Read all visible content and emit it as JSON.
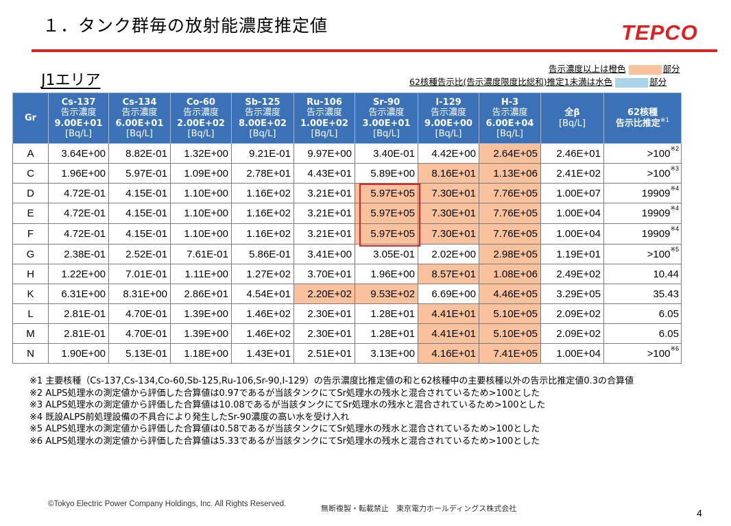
{
  "title": "１．タンク群毎の放射能濃度推定値",
  "logo": "TEPCO",
  "area_title": "J1エリア",
  "legend": {
    "line1_text": "告示濃度以上は橙色",
    "line1_suffix": "部分",
    "line2_text": "62核種告示比(告示濃度限度比総和)推定1未満は水色",
    "line2_suffix": "部分",
    "orange_color": "#f9c29c",
    "blue_color": "#a9d5e6"
  },
  "table": {
    "gr_header": "Gr",
    "columns": [
      {
        "name": "Cs-137",
        "sub": "告示濃度",
        "limit": "9.00E+01",
        "unit": "[Bq/L]"
      },
      {
        "name": "Cs-134",
        "sub": "告示濃度",
        "limit": "6.00E+01",
        "unit": "[Bq/L]"
      },
      {
        "name": "Co-60",
        "sub": "告示濃度",
        "limit": "2.00E+02",
        "unit": "[Bq/L]"
      },
      {
        "name": "Sb-125",
        "sub": "告示濃度",
        "limit": "8.00E+02",
        "unit": "[Bq/L]"
      },
      {
        "name": "Ru-106",
        "sub": "告示濃度",
        "limit": "1.00E+02",
        "unit": "[Bq/L]"
      },
      {
        "name": "Sr-90",
        "sub": "告示濃度",
        "limit": "3.00E+01",
        "unit": "[Bq/L]"
      },
      {
        "name": "I-129",
        "sub": "告示濃度",
        "limit": "9.00E+00",
        "unit": "[Bq/L]"
      },
      {
        "name": "H-3",
        "sub": "告示濃度",
        "limit": "6.00E+04",
        "unit": "[Bq/L]"
      }
    ],
    "beta_header": {
      "name": "全β",
      "unit": "[Bq/L]"
    },
    "ratio_header": {
      "name": "62核種",
      "sub": "告示比推定",
      "mark": "※1"
    },
    "rows": [
      {
        "gr": "A",
        "values": [
          "3.64E+00",
          "8.82E-01",
          "1.32E+00",
          "9.21E-01",
          "9.97E+00",
          "3.40E-01",
          "4.42E+00",
          "2.64E+05"
        ],
        "orange": [
          7
        ],
        "beta": "2.46E+01",
        "ratio": ">100",
        "note": "※2"
      },
      {
        "gr": "C",
        "values": [
          "1.96E+00",
          "5.97E-01",
          "1.09E+00",
          "2.78E+01",
          "4.43E+01",
          "5.89E+00",
          "8.16E+01",
          "1.13E+06"
        ],
        "orange": [
          6,
          7
        ],
        "beta": "2.41E+02",
        "ratio": ">100",
        "note": "※3"
      },
      {
        "gr": "D",
        "values": [
          "4.72E-01",
          "4.15E-01",
          "1.10E+00",
          "1.16E+02",
          "3.21E+01",
          "5.97E+05",
          "7.30E+01",
          "7.76E+05"
        ],
        "orange": [
          5,
          6,
          7
        ],
        "beta": "1.00E+07",
        "ratio": "19909",
        "note": "※4"
      },
      {
        "gr": "E",
        "values": [
          "4.72E-01",
          "4.15E-01",
          "1.10E+00",
          "1.16E+02",
          "3.21E+01",
          "5.97E+05",
          "7.30E+01",
          "7.76E+05"
        ],
        "orange": [
          5,
          6,
          7
        ],
        "beta": "1.00E+04",
        "ratio": "19909",
        "note": "※4"
      },
      {
        "gr": "F",
        "values": [
          "4.72E-01",
          "4.15E-01",
          "1.10E+00",
          "1.16E+02",
          "3.21E+01",
          "5.97E+05",
          "7.30E+01",
          "7.76E+05"
        ],
        "orange": [
          5,
          6,
          7
        ],
        "beta": "1.00E+04",
        "ratio": "19909",
        "note": "※4"
      },
      {
        "gr": "G",
        "values": [
          "2.38E-01",
          "2.52E-01",
          "7.61E-01",
          "5.86E-01",
          "3.41E+00",
          "3.05E-01",
          "2.02E+00",
          "2.98E+05"
        ],
        "orange": [
          7
        ],
        "beta": "1.19E+01",
        "ratio": ">100",
        "note": "※5"
      },
      {
        "gr": "H",
        "values": [
          "1.22E+00",
          "7.01E-01",
          "1.11E+00",
          "1.27E+02",
          "3.70E+01",
          "1.96E+00",
          "8.57E+01",
          "1.08E+06"
        ],
        "orange": [
          6,
          7
        ],
        "beta": "2.49E+02",
        "ratio": "10.44",
        "note": ""
      },
      {
        "gr": "K",
        "values": [
          "6.31E+00",
          "8.31E+00",
          "2.86E+01",
          "4.54E+01",
          "2.20E+02",
          "9.53E+02",
          "6.69E+00",
          "4.46E+05"
        ],
        "orange": [
          4,
          5,
          7
        ],
        "beta": "3.29E+05",
        "ratio": "35.43",
        "note": ""
      },
      {
        "gr": "L",
        "values": [
          "2.81E-01",
          "4.70E-01",
          "1.39E+00",
          "1.46E+02",
          "2.30E+01",
          "1.28E+01",
          "4.41E+01",
          "5.10E+05"
        ],
        "orange": [
          6,
          7
        ],
        "beta": "2.09E+02",
        "ratio": "6.05",
        "note": ""
      },
      {
        "gr": "M",
        "values": [
          "2.81E-01",
          "4.70E-01",
          "1.39E+00",
          "1.46E+02",
          "2.30E+01",
          "1.28E+01",
          "4.41E+01",
          "5.10E+05"
        ],
        "orange": [
          6,
          7
        ],
        "beta": "2.09E+02",
        "ratio": "6.05",
        "note": ""
      },
      {
        "gr": "N",
        "values": [
          "1.90E+00",
          "5.13E-01",
          "1.18E+00",
          "1.43E+01",
          "2.51E+01",
          "3.13E+00",
          "4.16E+01",
          "7.41E+05"
        ],
        "orange": [
          6,
          7
        ],
        "beta": "1.00E+04",
        "ratio": ">100",
        "note": "※6"
      }
    ]
  },
  "notes": [
    "※1 主要核種（Cs-137,Cs-134,Co-60,Sb-125,Ru-106,Sr-90,I-129）の告示濃度比推定値の和と62核種中の主要核種以外の告示比推定値0.3の合算値",
    "※2 ALPS処理水の測定値から評価した合算値は0.97であるが当該タンクにてSr処理水の残水と混合されているため>100とした",
    "※3 ALPS処理水の測定値から評価した合算値は10.08であるが当該タンクにてSr処理水の残水と混合されているため>100とした",
    "※4 既設ALPS前処理設備の不具合により発生したSr-90濃度の高い水を受け入れ",
    "※5 ALPS処理水の測定値から評価した合算値は0.58であるが当該タンクにてSr処理水の残水と混合されているため>100とした",
    "※6 ALPS処理水の測定値から評価した合算値は5.33であるが当該タンクにてSr処理水の残水と混合されているため>100とした"
  ],
  "footer": {
    "copyright": "©Tokyo Electric Power Company Holdings, Inc.  All Rights Reserved.",
    "notice": "無断複製・転載禁止　東京電力ホールディングス株式会社",
    "page": "4"
  }
}
